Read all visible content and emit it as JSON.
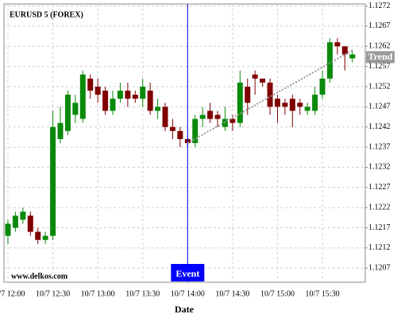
{
  "chart_data": {
    "type": "candlestick",
    "title": "EURUSD 5 (FOREX)",
    "watermark": "www.delkos.com",
    "x_label": "Date",
    "categories": [
      "10/7 12:00",
      null,
      null,
      null,
      null,
      null,
      "10/7 12:30",
      null,
      null,
      null,
      null,
      null,
      "10/7 13:00",
      null,
      null,
      null,
      null,
      null,
      "10/7 13:30",
      null,
      null,
      null,
      null,
      null,
      "10/7 14:00",
      null,
      null,
      null,
      null,
      null,
      "10/7 14:30",
      null,
      null,
      null,
      null,
      null,
      "10/7 15:00",
      null,
      null,
      null,
      null,
      null,
      "10/7 15:30",
      null,
      null,
      null,
      null
    ],
    "open": [
      1.1215,
      1.1217,
      1.1219,
      1.122,
      1.1216,
      1.1214,
      1.1215,
      1.1239,
      1.1241,
      1.1245,
      1.1244,
      1.1254,
      1.1252,
      1.1251,
      1.1246,
      1.1249,
      1.1251,
      1.125,
      1.1249,
      1.1251,
      1.1246,
      1.1247,
      1.1242,
      1.1241,
      1.1239,
      1.1238,
      1.1244,
      1.1246,
      1.1245,
      1.1242,
      1.1244,
      1.1243,
      1.1252,
      1.1255,
      1.1254,
      1.1253,
      1.1249,
      1.1248,
      1.1249,
      1.1248,
      1.1246,
      1.1246,
      1.125,
      1.1254,
      1.1263,
      1.1262,
      1.1259
    ],
    "high": [
      1.1219,
      1.1221,
      1.1222,
      1.1221,
      1.1217,
      1.1216,
      1.1246,
      1.1247,
      1.1251,
      1.125,
      1.1256,
      1.1255,
      1.1254,
      1.1252,
      1.1251,
      1.1253,
      1.1253,
      1.1251,
      1.1254,
      1.1253,
      1.1249,
      1.1248,
      1.1244,
      1.1242,
      1.124,
      1.1245,
      1.1247,
      1.1248,
      1.1246,
      1.1247,
      1.1245,
      1.1256,
      1.1254,
      1.1256,
      1.1254,
      1.1254,
      1.125,
      1.1249,
      1.125,
      1.1249,
      1.1248,
      1.1252,
      1.1256,
      1.1264,
      1.1264,
      1.1262,
      1.1261
    ],
    "low": [
      1.1213,
      1.1216,
      1.1218,
      1.1215,
      1.1213,
      1.1213,
      1.1214,
      1.1238,
      1.124,
      1.1243,
      1.1243,
      1.1249,
      1.1248,
      1.1245,
      1.1245,
      1.1248,
      1.1247,
      1.1248,
      1.1247,
      1.1245,
      1.1244,
      1.1241,
      1.1239,
      1.1237,
      1.1237,
      1.1237,
      1.1242,
      1.1243,
      1.1242,
      1.1241,
      1.1241,
      1.1242,
      1.1245,
      1.125,
      1.1252,
      1.1245,
      1.1243,
      1.1245,
      1.1242,
      1.1245,
      1.1245,
      1.1245,
      1.1249,
      1.1253,
      1.126,
      1.1256,
      1.1258
    ],
    "close": [
      1.1218,
      1.122,
      1.1221,
      1.1216,
      1.1214,
      1.1215,
      1.1242,
      1.1243,
      1.125,
      1.1248,
      1.1255,
      1.1251,
      1.125,
      1.1246,
      1.1249,
      1.1251,
      1.1249,
      1.1249,
      1.1252,
      1.1246,
      1.1247,
      1.1242,
      1.1241,
      1.1239,
      1.1238,
      1.1244,
      1.1245,
      1.1244,
      1.1244,
      1.1244,
      1.1243,
      1.1253,
      1.1248,
      1.1254,
      1.1253,
      1.1247,
      1.1247,
      1.1247,
      1.1246,
      1.1247,
      1.1247,
      1.125,
      1.1254,
      1.1263,
      1.1262,
      1.126,
      1.126
    ],
    "up_color": "#0a8a0a",
    "down_color": "#800000",
    "ylim": [
      1.12035,
      1.12725
    ],
    "yticks": [
      1.1207,
      1.1212,
      1.1217,
      1.1222,
      1.1227,
      1.1232,
      1.1237,
      1.1242,
      1.1247,
      1.1252,
      1.1257,
      1.1262,
      1.1267,
      1.1272
    ],
    "grid": true,
    "event": {
      "label": "Event",
      "x": "10/7 14:00",
      "color": "#0000ff"
    },
    "trend": {
      "label": "Trend",
      "start_x": "10/7 14:00",
      "values": [
        1.1238,
        1.1261
      ],
      "color": "#999999"
    }
  }
}
